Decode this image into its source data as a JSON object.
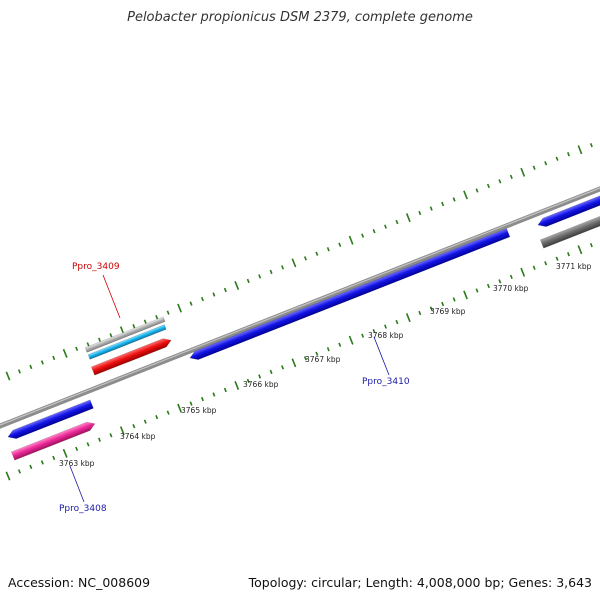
{
  "title": "Pelobacter propionicus DSM 2379, complete genome",
  "footer": {
    "accession": "Accession: NC_008609",
    "summary": "Topology: circular; Length: 4,008,000 bp; Genes: 3,643"
  },
  "colors": {
    "tick": "#2a7a1a",
    "backbone": "#8c8c8c",
    "gene_blue": "#1414e6",
    "gene_red": "#ee1111",
    "gene_pink": "#ee2a9a",
    "gene_cyan": "#1cb6f0",
    "gene_grey": "#b4b4b4",
    "gene_dark_grey": "#6e6e6e",
    "label_red": "#cc0000",
    "label_blue": "#1a1aa8"
  },
  "scale": {
    "tick_labels": [
      "3763 kbp",
      "3764 kbp",
      "3765 kbp",
      "3766 kbp",
      "3767 kbp",
      "3768 kbp",
      "3769 kbp",
      "3770 kbp",
      "3771 kbp"
    ]
  },
  "gene_labels": [
    {
      "text": "Ppro_3409",
      "color": "red"
    },
    {
      "text": "Ppro_3410",
      "color": "blue"
    },
    {
      "text": "Ppro_3408",
      "color": "blue"
    }
  ],
  "features": [
    {
      "name": "gene-blue-left",
      "color": "blue"
    },
    {
      "name": "gene-pink-left",
      "color": "pink"
    },
    {
      "name": "gene-grey-3409",
      "color": "grey"
    },
    {
      "name": "gene-cyan-3409",
      "color": "cyan"
    },
    {
      "name": "gene-red-3409",
      "color": "red"
    },
    {
      "name": "gene-blue-3410",
      "color": "blue"
    },
    {
      "name": "gene-blue-right",
      "color": "blue"
    },
    {
      "name": "gene-darkgrey-right",
      "color": "dark_grey"
    }
  ]
}
